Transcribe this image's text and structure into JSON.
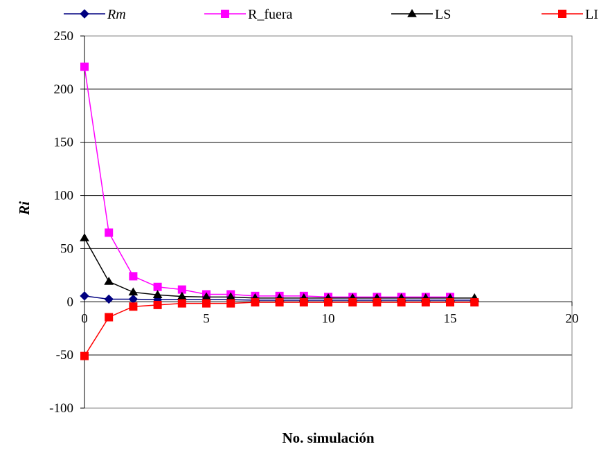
{
  "chart_data": {
    "type": "line",
    "xlabel": "No. simulación",
    "ylabel": "Ri",
    "xlim": [
      0,
      20
    ],
    "ylim": [
      -100,
      250
    ],
    "xticks": [
      0,
      5,
      10,
      15,
      20
    ],
    "yticks": [
      -100,
      -50,
      0,
      50,
      100,
      150,
      200,
      250
    ],
    "xtick_labels": [
      "0",
      "5",
      "10",
      "15",
      "20"
    ],
    "ytick_labels": [
      "-100",
      "-50",
      "0",
      "50",
      "100",
      "150",
      "200",
      "250"
    ],
    "grid": "horizontal",
    "legend_position": "top",
    "x": [
      0,
      1,
      2,
      3,
      4,
      5,
      6,
      7,
      8,
      9,
      10,
      11,
      12,
      13,
      14,
      15,
      16
    ],
    "series": [
      {
        "name": "Rm",
        "italic": true,
        "color": "#000080",
        "marker": "diamond",
        "x": [
          0,
          1,
          2,
          3,
          4,
          5,
          6,
          7,
          8,
          9,
          10,
          11,
          12,
          13,
          14,
          15,
          16
        ],
        "values": [
          5.5,
          2.5,
          2.5,
          2,
          2,
          2,
          2,
          1.5,
          1.5,
          1.5,
          1.5,
          1.5,
          1.5,
          1.5,
          1.5,
          1.5,
          1.5
        ]
      },
      {
        "name": "R_fuera",
        "italic": false,
        "color": "#ff00ff",
        "marker": "square",
        "x": [
          0,
          1,
          2,
          3,
          4,
          5,
          6,
          7,
          8,
          9,
          10,
          11,
          12,
          13,
          14,
          15
        ],
        "values": [
          221,
          65,
          24,
          14,
          11.5,
          7,
          7,
          5.5,
          5.5,
          5.5,
          4.5,
          4.5,
          4.5,
          4.5,
          4.5,
          4.5
        ]
      },
      {
        "name": "LS",
        "italic": false,
        "color": "#000000",
        "marker": "triangle",
        "x": [
          0,
          1,
          2,
          3,
          4,
          5,
          6,
          7,
          8,
          9,
          10,
          11,
          12,
          13,
          14,
          15,
          16
        ],
        "values": [
          60,
          19,
          9,
          6.5,
          5,
          4.5,
          4.5,
          3.5,
          3.5,
          3.5,
          3.5,
          3.5,
          3.5,
          3.5,
          3.5,
          3.5,
          3.5
        ]
      },
      {
        "name": "LI",
        "italic": false,
        "color": "#ff0000",
        "marker": "square",
        "x": [
          0,
          1,
          2,
          3,
          4,
          5,
          6,
          7,
          8,
          9,
          10,
          11,
          12,
          13,
          14,
          15,
          16
        ],
        "values": [
          -51,
          -14.5,
          -4.5,
          -3,
          -1.5,
          -1.5,
          -1.5,
          -0.5,
          -0.5,
          -0.5,
          -0.5,
          -0.5,
          -0.5,
          -0.5,
          -0.5,
          -0.5,
          -0.5
        ]
      }
    ]
  }
}
